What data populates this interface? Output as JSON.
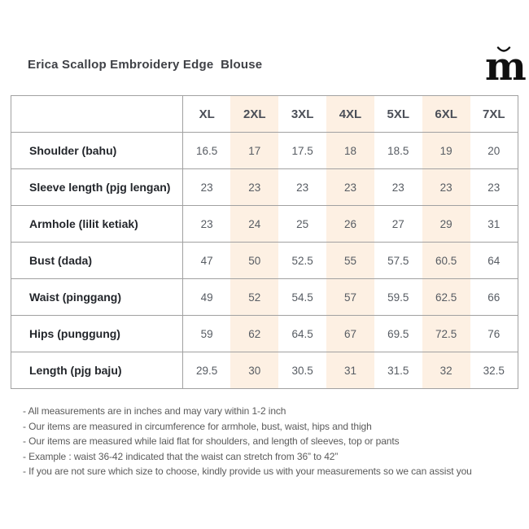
{
  "header": {
    "title": "Erica Scallop Embroidery Edge  Blouse",
    "logo_letter": "m"
  },
  "table": {
    "sizes": [
      "XL",
      "2XL",
      "3XL",
      "4XL",
      "5XL",
      "6XL",
      "7XL"
    ],
    "highlighted_columns": [
      1,
      3,
      5
    ],
    "rows": [
      {
        "label": "Shoulder (bahu)",
        "values": [
          "16.5",
          "17",
          "17.5",
          "18",
          "18.5",
          "19",
          "20"
        ]
      },
      {
        "label": "Sleeve length (pjg lengan)",
        "values": [
          "23",
          "23",
          "23",
          "23",
          "23",
          "23",
          "23"
        ]
      },
      {
        "label": "Armhole (lilit ketiak)",
        "values": [
          "23",
          "24",
          "25",
          "26",
          "27",
          "29",
          "31"
        ]
      },
      {
        "label": "Bust (dada)",
        "values": [
          "47",
          "50",
          "52.5",
          "55",
          "57.5",
          "60.5",
          "64"
        ]
      },
      {
        "label": "Waist (pinggang)",
        "values": [
          "49",
          "52",
          "54.5",
          "57",
          "59.5",
          "62.5",
          "66"
        ]
      },
      {
        "label": "Hips (punggung)",
        "values": [
          "59",
          "62",
          "64.5",
          "67",
          "69.5",
          "72.5",
          "76"
        ]
      },
      {
        "label": "Length (pjg baju)",
        "values": [
          "29.5",
          "30",
          "30.5",
          "31",
          "31.5",
          "32",
          "32.5"
        ]
      }
    ]
  },
  "notes": [
    "- All measurements are in inches and may vary within 1-2 inch",
    "- Our items are measured in circumference for armhole, bust, waist, hips and thigh",
    "- Our items are measured while laid flat for shoulders, and length of sleeves, top or pants",
    "- Example : waist 36-42 indicated that the waist can stretch from 36” to 42”",
    "- If you are not sure which size to choose, kindly provide us with your measurements so we can assist you"
  ],
  "colors": {
    "highlight": "#fdf0e3",
    "border": "#a1a1a1",
    "label_text": "#23262b",
    "value_text": "#575c63",
    "note_text": "#5a5a5a"
  }
}
